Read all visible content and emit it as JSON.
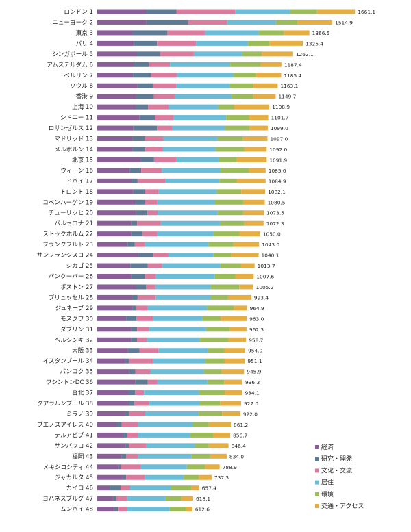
{
  "chart_data": {
    "type": "bar",
    "orientation": "horizontal",
    "stacked": true,
    "legend_position": "bottom-right",
    "series": [
      {
        "name": "経済",
        "color": "#8a5e96"
      },
      {
        "name": "研究・開発",
        "color": "#5f7a94"
      },
      {
        "name": "文化・交流",
        "color": "#d97b9c"
      },
      {
        "name": "居住",
        "color": "#6cbcd8"
      },
      {
        "name": "環境",
        "color": "#9cbc5c"
      },
      {
        "name": "交通・アクセス",
        "color": "#e5ae44"
      }
    ],
    "categories": [
      "ロンドン 1",
      "ニューヨーク 2",
      "東京 3",
      "パリ 4",
      "シンガポール 5",
      "アムステルダム 6",
      "ベルリン 7",
      "ソウル 8",
      "香港 9",
      "上海 10",
      "シドニー 11",
      "ロサンゼルス 12",
      "マドリッド 13",
      "メルボルン 14",
      "北京 15",
      "ウィーン 16",
      "ドバイ 17",
      "トロント 18",
      "コペンハーゲン 19",
      "チューリッヒ 20",
      "バルセロナ 21",
      "ストックホルム 22",
      "フランクフルト 23",
      "サンフランシスコ 24",
      "シカゴ 25",
      "バンクーバー 26",
      "ボストン 27",
      "ブリュッセル 28",
      "ジュネーブ 29",
      "モスクワ 30",
      "ダブリン 31",
      "ヘルシンキ 32",
      "大阪 33",
      "イスタンブール 34",
      "バンコク 35",
      "ワシントンDC 36",
      "台北 37",
      "クアラルンプール 38",
      "ミラノ 39",
      "ブエノスアイレス 40",
      "テルアビブ 41",
      "サンパウロ 42",
      "福岡 43",
      "メキシコシティ 44",
      "ジャカルタ 45",
      "カイロ 46",
      "ヨハネスブルグ 47",
      "ムンバイ 48"
    ],
    "totals": [
      "1661.1",
      "1514.9",
      "1366.5",
      "1325.4",
      "1262.1",
      "1187.4",
      "1185.4",
      "1163.1",
      "1149.7",
      "1108.9",
      "1101.7",
      "1099.0",
      "1097.0",
      "1092.0",
      "1091.9",
      "1085.0",
      "1084.9",
      "1082.1",
      "1080.5",
      "1073.5",
      "1072.3",
      "1050.0",
      "1043.0",
      "1040.1",
      "1013.7",
      "1007.6",
      "1005.2",
      "993.4",
      "964.9",
      "963.0",
      "962.3",
      "958.7",
      "954.0",
      "951.1",
      "945.9",
      "936.3",
      "934.1",
      "927.0",
      "922.0",
      "861.2",
      "856.7",
      "846.4",
      "834.0",
      "788.9",
      "737.3",
      "657.4",
      "618.1",
      "612.6"
    ],
    "segments": [
      [
        318,
        192,
        378,
        356,
        172,
        245
      ],
      [
        315,
        270,
        251,
        315,
        140,
        224
      ],
      [
        227,
        225,
        241,
        348,
        161,
        165
      ],
      [
        235,
        150,
        252,
        335,
        137,
        216
      ],
      [
        256,
        150,
        216,
        310,
        128,
        202
      ],
      [
        235,
        97,
        137,
        388,
        196,
        134
      ],
      [
        230,
        117,
        167,
        362,
        147,
        162
      ],
      [
        260,
        98,
        150,
        346,
        151,
        158
      ],
      [
        250,
        114,
        138,
        364,
        138,
        146
      ],
      [
        250,
        78,
        133,
        318,
        104,
        226
      ],
      [
        270,
        102,
        120,
        339,
        146,
        125
      ],
      [
        233,
        152,
        100,
        338,
        159,
        117
      ],
      [
        227,
        82,
        117,
        347,
        166,
        158
      ],
      [
        229,
        81,
        114,
        338,
        185,
        145
      ],
      [
        280,
        86,
        145,
        273,
        115,
        193
      ],
      [
        209,
        74,
        133,
        379,
        183,
        107
      ],
      [
        222,
        38,
        179,
        348,
        114,
        184
      ],
      [
        233,
        76,
        84,
        377,
        158,
        154
      ],
      [
        248,
        58,
        81,
        368,
        189,
        136
      ],
      [
        250,
        73,
        66,
        387,
        164,
        133
      ],
      [
        217,
        40,
        152,
        381,
        158,
        124
      ],
      [
        217,
        76,
        93,
        362,
        170,
        132
      ],
      [
        195,
        47,
        66,
        409,
        161,
        165
      ],
      [
        263,
        100,
        96,
        288,
        117,
        176
      ],
      [
        213,
        113,
        92,
        376,
        133,
        87
      ],
      [
        220,
        90,
        68,
        380,
        132,
        118
      ],
      [
        249,
        66,
        59,
        355,
        186,
        90
      ],
      [
        224,
        36,
        116,
        355,
        112,
        150
      ],
      [
        229,
        21,
        76,
        382,
        174,
        83
      ],
      [
        187,
        65,
        107,
        319,
        118,
        167
      ],
      [
        219,
        38,
        75,
        369,
        154,
        107
      ],
      [
        218,
        38,
        64,
        343,
        183,
        113
      ],
      [
        198,
        74,
        122,
        320,
        105,
        135
      ],
      [
        180,
        25,
        153,
        337,
        126,
        130
      ],
      [
        206,
        40,
        98,
        342,
        117,
        143
      ],
      [
        244,
        81,
        63,
        322,
        108,
        118
      ],
      [
        203,
        40,
        58,
        355,
        166,
        112
      ],
      [
        204,
        36,
        96,
        322,
        133,
        136
      ],
      [
        179,
        27,
        100,
        348,
        151,
        117
      ],
      [
        122,
        36,
        105,
        353,
        103,
        142
      ],
      [
        164,
        28,
        70,
        338,
        146,
        111
      ],
      [
        184,
        19,
        113,
        313,
        90,
        127
      ],
      [
        158,
        29,
        77,
        342,
        122,
        106
      ],
      [
        136,
        16,
        128,
        297,
        118,
        94
      ],
      [
        163,
        23,
        119,
        252,
        97,
        83
      ],
      [
        80,
        70,
        62,
        265,
        128,
        52
      ],
      [
        101,
        19,
        73,
        245,
        103,
        77
      ],
      [
        109,
        24,
        61,
        271,
        106,
        42
      ]
    ]
  }
}
